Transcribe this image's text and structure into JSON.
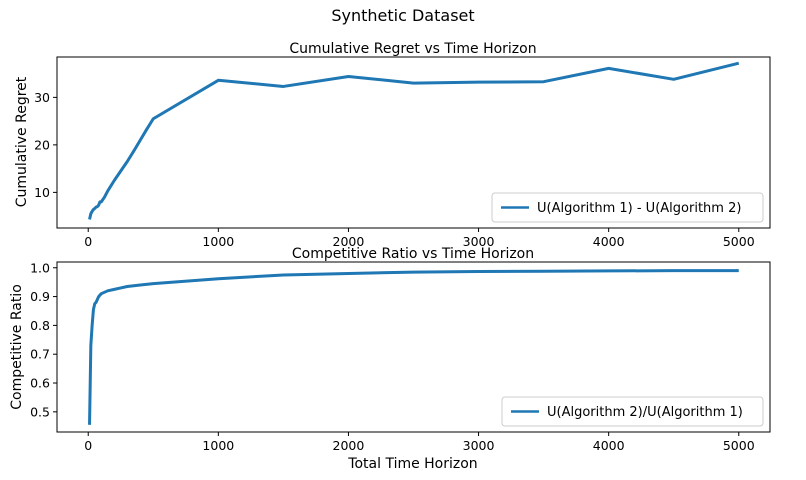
{
  "figure": {
    "suptitle": "Synthetic Dataset"
  },
  "chart_data": [
    {
      "type": "line",
      "title": "Cumulative Regret vs Time Horizon",
      "xlabel": "",
      "ylabel": "Cumulative Regret",
      "xlim": [
        -240,
        5240
      ],
      "ylim": [
        2.5,
        38.5
      ],
      "xticks": [
        0,
        1000,
        2000,
        3000,
        4000,
        5000
      ],
      "xtick_labels": [
        "0",
        "1000",
        "2000",
        "3000",
        "4000",
        "5000"
      ],
      "yticks": [
        10,
        20,
        30
      ],
      "ytick_labels": [
        "10",
        "20",
        "30"
      ],
      "grid": false,
      "legend_position": "lower-right",
      "series": [
        {
          "name": "U(Algorithm 1) - U(Algorithm 2)",
          "color": "#1f77b4",
          "x": [
            10,
            20,
            30,
            40,
            50,
            60,
            70,
            80,
            90,
            100,
            125,
            150,
            200,
            250,
            300,
            350,
            400,
            450,
            500,
            1000,
            1500,
            2000,
            2500,
            3000,
            3500,
            4000,
            4500,
            5000
          ],
          "y": [
            4.3,
            5.5,
            6.0,
            6.4,
            6.6,
            6.9,
            7.0,
            7.3,
            8.0,
            8.0,
            9.0,
            10.3,
            12.5,
            14.5,
            16.5,
            18.7,
            21.0,
            23.3,
            25.5,
            33.6,
            32.3,
            34.4,
            33.0,
            33.2,
            33.3,
            36.1,
            33.8,
            37.2
          ]
        }
      ]
    },
    {
      "type": "line",
      "title": "Competitive Ratio vs Time Horizon",
      "xlabel": "Total Time Horizon",
      "ylabel": "Competitive  Ratio",
      "xlim": [
        -240,
        5240
      ],
      "ylim": [
        0.43,
        1.02
      ],
      "xticks": [
        0,
        1000,
        2000,
        3000,
        4000,
        5000
      ],
      "xtick_labels": [
        "0",
        "1000",
        "2000",
        "3000",
        "4000",
        "5000"
      ],
      "yticks": [
        0.5,
        0.6,
        0.7,
        0.8,
        0.9,
        1.0
      ],
      "ytick_labels": [
        "0.5",
        "0.6",
        "0.7",
        "0.8",
        "0.9",
        "1.0"
      ],
      "grid": false,
      "legend_position": "lower-right",
      "series": [
        {
          "name": "U(Algorithm 2)/U(Algorithm 1)",
          "color": "#1f77b4",
          "x": [
            10,
            20,
            30,
            40,
            50,
            60,
            70,
            80,
            100,
            150,
            200,
            250,
            300,
            400,
            500,
            1000,
            1500,
            2000,
            2500,
            3000,
            3500,
            4000,
            4500,
            5000
          ],
          "y": [
            0.455,
            0.73,
            0.8,
            0.855,
            0.875,
            0.88,
            0.89,
            0.9,
            0.91,
            0.92,
            0.925,
            0.93,
            0.935,
            0.94,
            0.945,
            0.962,
            0.975,
            0.98,
            0.985,
            0.987,
            0.988,
            0.989,
            0.99,
            0.99
          ]
        }
      ]
    }
  ]
}
